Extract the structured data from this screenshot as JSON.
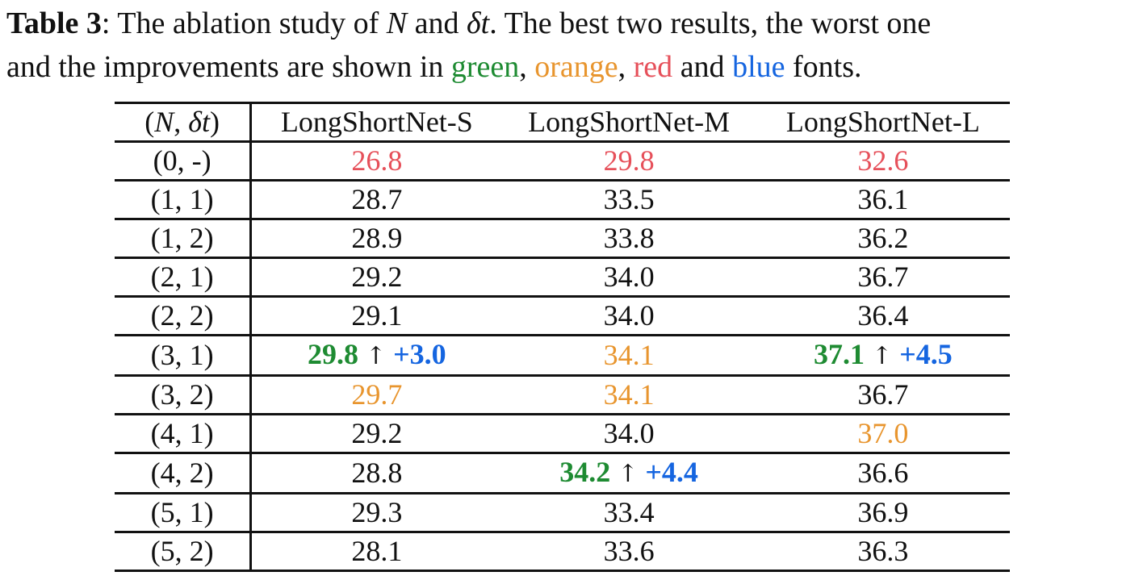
{
  "caption": {
    "label": "Table 3",
    "colon": ":",
    "text_1": " The ablation study of ",
    "sym_n": "N",
    "text_and": " and ",
    "sym_dt": "δt",
    "text_2": ". The best two results, the worst one",
    "text_3": "and the improvements are shown in ",
    "word_green": "green",
    "comma1": ", ",
    "word_orange": "orange",
    "comma2": ", ",
    "word_red": "red",
    "text_and2": " and ",
    "word_blue": "blue",
    "text_end": " fonts."
  },
  "colors": {
    "green": "#1e8b32",
    "orange": "#e8952e",
    "red": "#e6505a",
    "blue": "#1565e0"
  },
  "table": {
    "header": {
      "key_open": "(",
      "key_n": "N",
      "key_sep": ", ",
      "key_dt": "δt",
      "key_close": ")",
      "col_s": "LongShortNet-S",
      "col_m": "LongShortNet-M",
      "col_l": "LongShortNet-L"
    },
    "rows": [
      {
        "key": "(0, -)",
        "s": {
          "v": "26.8",
          "style": "worst"
        },
        "m": {
          "v": "29.8",
          "style": "worst"
        },
        "l": {
          "v": "32.6",
          "style": "worst"
        }
      },
      {
        "key": "(1, 1)",
        "s": {
          "v": "28.7",
          "style": "plain"
        },
        "m": {
          "v": "33.5",
          "style": "plain"
        },
        "l": {
          "v": "36.1",
          "style": "plain"
        }
      },
      {
        "key": "(1, 2)",
        "s": {
          "v": "28.9",
          "style": "plain"
        },
        "m": {
          "v": "33.8",
          "style": "plain"
        },
        "l": {
          "v": "36.2",
          "style": "plain"
        }
      },
      {
        "key": "(2, 1)",
        "s": {
          "v": "29.2",
          "style": "plain"
        },
        "m": {
          "v": "34.0",
          "style": "plain"
        },
        "l": {
          "v": "36.7",
          "style": "plain"
        }
      },
      {
        "key": "(2, 2)",
        "s": {
          "v": "29.1",
          "style": "plain"
        },
        "m": {
          "v": "34.0",
          "style": "plain"
        },
        "l": {
          "v": "36.4",
          "style": "plain"
        }
      },
      {
        "key": "(3, 1)",
        "s": {
          "v": "29.8",
          "style": "best",
          "arrow": "↑",
          "imp": "+3.0"
        },
        "m": {
          "v": "34.1",
          "style": "second"
        },
        "l": {
          "v": "37.1",
          "style": "best",
          "arrow": "↑",
          "imp": "+4.5"
        }
      },
      {
        "key": "(3, 2)",
        "s": {
          "v": "29.7",
          "style": "second"
        },
        "m": {
          "v": "34.1",
          "style": "second"
        },
        "l": {
          "v": "36.7",
          "style": "plain"
        }
      },
      {
        "key": "(4, 1)",
        "s": {
          "v": "29.2",
          "style": "plain"
        },
        "m": {
          "v": "34.0",
          "style": "plain"
        },
        "l": {
          "v": "37.0",
          "style": "second"
        }
      },
      {
        "key": "(4, 2)",
        "s": {
          "v": "28.8",
          "style": "plain"
        },
        "m": {
          "v": "34.2",
          "style": "best",
          "arrow": "↑",
          "imp": "+4.4"
        },
        "l": {
          "v": "36.6",
          "style": "plain"
        }
      },
      {
        "key": "(5, 1)",
        "s": {
          "v": "29.3",
          "style": "plain"
        },
        "m": {
          "v": "33.4",
          "style": "plain"
        },
        "l": {
          "v": "36.9",
          "style": "plain"
        }
      },
      {
        "key": "(5, 2)",
        "s": {
          "v": "28.1",
          "style": "plain"
        },
        "m": {
          "v": "33.6",
          "style": "plain"
        },
        "l": {
          "v": "36.3",
          "style": "plain"
        }
      }
    ]
  }
}
